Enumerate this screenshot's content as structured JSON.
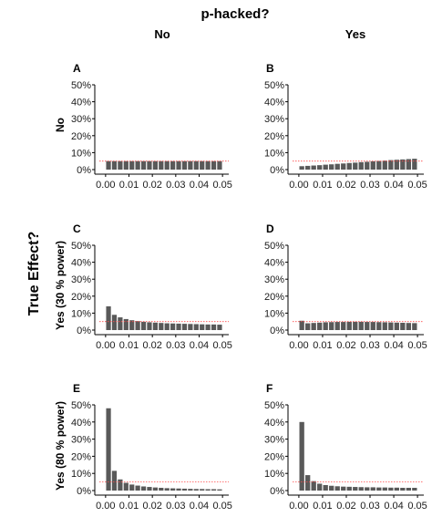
{
  "figure": {
    "title": "p-hacked?",
    "column_headers": [
      "No",
      "Yes"
    ],
    "y_super_label": "True Effect?",
    "row_labels": [
      "No",
      "Yes (30 % power)",
      "Yes (80 % power)"
    ]
  },
  "colors": {
    "bar": "#595959",
    "threshold": "#ff4d4d",
    "axis": "#000000"
  },
  "chart_data": [
    {
      "type": "bar",
      "panel": "A",
      "row": "No",
      "column": "No",
      "x": [
        0.00125,
        0.00375,
        0.00625,
        0.00875,
        0.01125,
        0.01375,
        0.01625,
        0.01875,
        0.02125,
        0.02375,
        0.02625,
        0.02875,
        0.03125,
        0.03375,
        0.03625,
        0.03875,
        0.04125,
        0.04375,
        0.04625,
        0.04875
      ],
      "values": [
        0.05,
        0.05,
        0.05,
        0.05,
        0.05,
        0.05,
        0.05,
        0.05,
        0.05,
        0.05,
        0.05,
        0.05,
        0.05,
        0.05,
        0.05,
        0.05,
        0.05,
        0.05,
        0.05,
        0.05
      ],
      "xticks": [
        "0.00",
        "0.01",
        "0.02",
        "0.03",
        "0.04",
        "0.05"
      ],
      "yticks": [
        "0%",
        "10%",
        "20%",
        "30%",
        "40%",
        "50%"
      ],
      "xlim": [
        0,
        0.05
      ],
      "ylim": [
        0,
        0.5
      ],
      "reference_line": 0.05
    },
    {
      "type": "bar",
      "panel": "B",
      "row": "No",
      "column": "Yes",
      "x": [
        0.00125,
        0.00375,
        0.00625,
        0.00875,
        0.01125,
        0.01375,
        0.01625,
        0.01875,
        0.02125,
        0.02375,
        0.02625,
        0.02875,
        0.03125,
        0.03375,
        0.03625,
        0.03875,
        0.04125,
        0.04375,
        0.04625,
        0.04875
      ],
      "values": [
        0.02,
        0.022,
        0.024,
        0.026,
        0.029,
        0.031,
        0.034,
        0.036,
        0.039,
        0.041,
        0.044,
        0.046,
        0.049,
        0.051,
        0.053,
        0.056,
        0.058,
        0.06,
        0.062,
        0.064
      ],
      "xticks": [
        "0.00",
        "0.01",
        "0.02",
        "0.03",
        "0.04",
        "0.05"
      ],
      "yticks": [
        "0%",
        "10%",
        "20%",
        "30%",
        "40%",
        "50%"
      ],
      "xlim": [
        0,
        0.05
      ],
      "ylim": [
        0,
        0.5
      ],
      "reference_line": 0.05
    },
    {
      "type": "bar",
      "panel": "C",
      "row": "Yes (30 % power)",
      "column": "No",
      "x": [
        0.00125,
        0.00375,
        0.00625,
        0.00875,
        0.01125,
        0.01375,
        0.01625,
        0.01875,
        0.02125,
        0.02375,
        0.02625,
        0.02875,
        0.03125,
        0.03375,
        0.03625,
        0.03875,
        0.04125,
        0.04375,
        0.04625,
        0.04875
      ],
      "values": [
        0.14,
        0.09,
        0.075,
        0.065,
        0.058,
        0.053,
        0.049,
        0.046,
        0.044,
        0.042,
        0.04,
        0.039,
        0.038,
        0.037,
        0.036,
        0.035,
        0.034,
        0.033,
        0.033,
        0.032
      ],
      "xticks": [
        "0.00",
        "0.01",
        "0.02",
        "0.03",
        "0.04",
        "0.05"
      ],
      "yticks": [
        "0%",
        "10%",
        "20%",
        "30%",
        "40%",
        "50%"
      ],
      "xlim": [
        0,
        0.05
      ],
      "ylim": [
        0,
        0.5
      ],
      "reference_line": 0.05
    },
    {
      "type": "bar",
      "panel": "D",
      "row": "Yes (30 % power)",
      "column": "Yes",
      "x": [
        0.00125,
        0.00375,
        0.00625,
        0.00875,
        0.01125,
        0.01375,
        0.01625,
        0.01875,
        0.02125,
        0.02375,
        0.02625,
        0.02875,
        0.03125,
        0.03375,
        0.03625,
        0.03875,
        0.04125,
        0.04375,
        0.04625,
        0.04875
      ],
      "values": [
        0.055,
        0.04,
        0.042,
        0.044,
        0.046,
        0.047,
        0.048,
        0.048,
        0.049,
        0.049,
        0.049,
        0.048,
        0.048,
        0.047,
        0.046,
        0.045,
        0.044,
        0.043,
        0.042,
        0.041
      ],
      "xticks": [
        "0.00",
        "0.01",
        "0.02",
        "0.03",
        "0.04",
        "0.05"
      ],
      "yticks": [
        "0%",
        "10%",
        "20%",
        "30%",
        "40%",
        "50%"
      ],
      "xlim": [
        0,
        0.05
      ],
      "ylim": [
        0,
        0.5
      ],
      "reference_line": 0.05
    },
    {
      "type": "bar",
      "panel": "E",
      "row": "Yes (80 % power)",
      "column": "No",
      "x": [
        0.00125,
        0.00375,
        0.00625,
        0.00875,
        0.01125,
        0.01375,
        0.01625,
        0.01875,
        0.02125,
        0.02375,
        0.02625,
        0.02875,
        0.03125,
        0.03375,
        0.03625,
        0.03875,
        0.04125,
        0.04375,
        0.04625,
        0.04875
      ],
      "values": [
        0.48,
        0.115,
        0.065,
        0.045,
        0.035,
        0.029,
        0.024,
        0.021,
        0.018,
        0.016,
        0.014,
        0.013,
        0.012,
        0.011,
        0.01,
        0.009,
        0.009,
        0.008,
        0.008,
        0.007
      ],
      "xticks": [
        "0.00",
        "0.01",
        "0.02",
        "0.03",
        "0.04",
        "0.05"
      ],
      "yticks": [
        "0%",
        "10%",
        "20%",
        "30%",
        "40%",
        "50%"
      ],
      "xlim": [
        0,
        0.05
      ],
      "ylim": [
        0,
        0.5
      ],
      "reference_line": 0.05
    },
    {
      "type": "bar",
      "panel": "F",
      "row": "Yes (80 % power)",
      "column": "Yes",
      "x": [
        0.00125,
        0.00375,
        0.00625,
        0.00875,
        0.01125,
        0.01375,
        0.01625,
        0.01875,
        0.02125,
        0.02375,
        0.02625,
        0.02875,
        0.03125,
        0.03375,
        0.03625,
        0.03875,
        0.04125,
        0.04375,
        0.04625,
        0.04875
      ],
      "values": [
        0.4,
        0.09,
        0.055,
        0.04,
        0.032,
        0.028,
        0.025,
        0.023,
        0.022,
        0.021,
        0.02,
        0.019,
        0.019,
        0.018,
        0.018,
        0.017,
        0.017,
        0.016,
        0.016,
        0.016
      ],
      "xticks": [
        "0.00",
        "0.01",
        "0.02",
        "0.03",
        "0.04",
        "0.05"
      ],
      "yticks": [
        "0%",
        "10%",
        "20%",
        "30%",
        "40%",
        "50%"
      ],
      "xlim": [
        0,
        0.05
      ],
      "ylim": [
        0,
        0.5
      ],
      "reference_line": 0.05
    }
  ]
}
